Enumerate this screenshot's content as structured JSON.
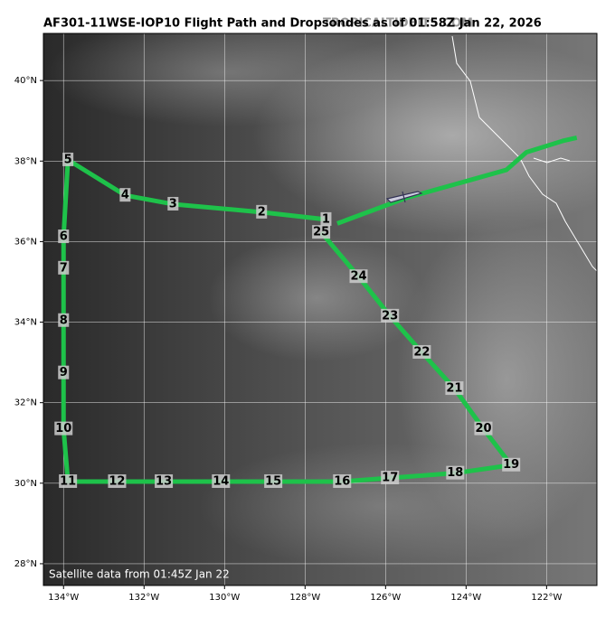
{
  "title": "AF301-11WSE-IOP10 Flight Path and Dropsondes as of 01:58Z Jan 22, 2026",
  "watermark": "TROPICALTIDBITS.COM",
  "footnote": "Satellite data from 01:45Z Jan 22",
  "xlim": [
    -134.5,
    -120.75
  ],
  "ylim": [
    27.46,
    41.17
  ],
  "xticks": [
    {
      "value": -134,
      "label": "134°W"
    },
    {
      "value": -132,
      "label": "132°W"
    },
    {
      "value": -130,
      "label": "130°W"
    },
    {
      "value": -128,
      "label": "128°W"
    },
    {
      "value": -126,
      "label": "126°W"
    },
    {
      "value": -124,
      "label": "124°W"
    },
    {
      "value": -122,
      "label": "122°W"
    }
  ],
  "yticks": [
    {
      "value": 28,
      "label": "28°N"
    },
    {
      "value": 30,
      "label": "30°N"
    },
    {
      "value": 32,
      "label": "32°N"
    },
    {
      "value": 34,
      "label": "34°N"
    },
    {
      "value": 36,
      "label": "36°N"
    },
    {
      "value": 38,
      "label": "38°N"
    },
    {
      "value": 40,
      "label": "40°N"
    }
  ],
  "track_color": "#1ec24a",
  "drops": [
    {
      "label": "1",
      "lon": -127.48,
      "lat": 36.55
    },
    {
      "label": "2",
      "lon": -129.08,
      "lat": 36.73
    },
    {
      "label": "3",
      "lon": -131.28,
      "lat": 36.93
    },
    {
      "label": "4",
      "lon": -132.47,
      "lat": 37.15
    },
    {
      "label": "5",
      "lon": -133.89,
      "lat": 38.03
    },
    {
      "label": "6",
      "lon": -134.0,
      "lat": 36.12
    },
    {
      "label": "7",
      "lon": -134.0,
      "lat": 35.34
    },
    {
      "label": "8",
      "lon": -134.0,
      "lat": 34.04
    },
    {
      "label": "9",
      "lon": -134.0,
      "lat": 32.74
    },
    {
      "label": "10",
      "lon": -134.0,
      "lat": 31.35
    },
    {
      "label": "11",
      "lon": -133.89,
      "lat": 30.04
    },
    {
      "label": "12",
      "lon": -132.67,
      "lat": 30.04
    },
    {
      "label": "13",
      "lon": -131.51,
      "lat": 30.04
    },
    {
      "label": "14",
      "lon": -130.09,
      "lat": 30.04
    },
    {
      "label": "15",
      "lon": -128.79,
      "lat": 30.04
    },
    {
      "label": "16",
      "lon": -127.08,
      "lat": 30.04
    },
    {
      "label": "17",
      "lon": -125.89,
      "lat": 30.13
    },
    {
      "label": "18",
      "lon": -124.27,
      "lat": 30.25
    },
    {
      "label": "19",
      "lon": -122.88,
      "lat": 30.45
    },
    {
      "label": "20",
      "lon": -123.57,
      "lat": 31.35
    },
    {
      "label": "21",
      "lon": -124.29,
      "lat": 32.35
    },
    {
      "label": "22",
      "lon": -125.1,
      "lat": 33.25
    },
    {
      "label": "23",
      "lon": -125.89,
      "lat": 34.15
    },
    {
      "label": "24",
      "lon": -126.67,
      "lat": 35.13
    },
    {
      "label": "25",
      "lon": -127.6,
      "lat": 36.23
    }
  ],
  "inbound_track": [
    [
      -121.25,
      38.58
    ],
    [
      -121.6,
      38.5
    ],
    [
      -122.5,
      38.22
    ],
    [
      -123.0,
      37.78
    ],
    [
      -125.5,
      37.08
    ],
    [
      -127.2,
      36.45
    ]
  ]
}
